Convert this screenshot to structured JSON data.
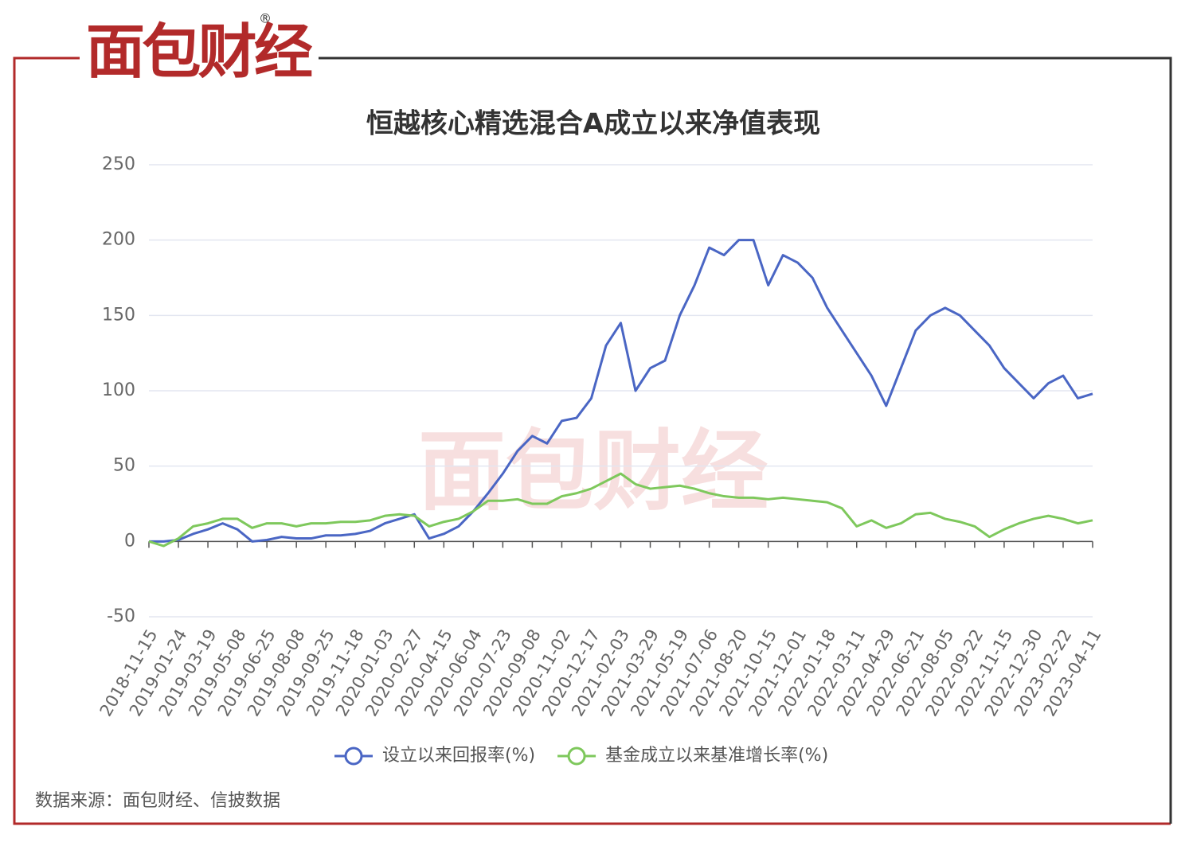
{
  "logo": "面包财经",
  "source": "数据来源：面包财经、信披数据",
  "chart_data": {
    "type": "line",
    "title": "恒越核心精选混合A成立以来净值表现",
    "categories": [
      "2018-11-15",
      null,
      "2019-01-24",
      null,
      "2019-03-19",
      null,
      "2019-05-08",
      null,
      "2019-06-25",
      null,
      "2019-08-08",
      null,
      "2019-09-25",
      null,
      "2019-11-18",
      null,
      "2020-01-03",
      null,
      "2020-02-27",
      null,
      "2020-04-15",
      null,
      "2020-06-04",
      null,
      "2020-07-23",
      null,
      "2020-09-08",
      null,
      "2020-11-02",
      null,
      "2020-12-17",
      null,
      "2021-02-03",
      null,
      "2021-03-29",
      null,
      "2021-05-19",
      null,
      "2021-07-06",
      null,
      "2021-08-20",
      null,
      "2021-10-15",
      null,
      "2021-12-01",
      null,
      "2022-01-18",
      null,
      "2022-03-11",
      null,
      "2022-04-29",
      null,
      "2022-06-21",
      null,
      "2022-08-05",
      null,
      "2022-09-22",
      null,
      "2022-11-15",
      null,
      "2022-12-30",
      null,
      "2023-02-22",
      null,
      "2023-04-11"
    ],
    "series": [
      {
        "name": "设立以来回报率(%)",
        "color": "#4a66c4",
        "values": [
          0,
          0,
          1,
          5,
          8,
          12,
          8,
          0,
          1,
          3,
          2,
          2,
          4,
          4,
          5,
          7,
          12,
          15,
          18,
          2,
          5,
          10,
          20,
          32,
          45,
          60,
          70,
          65,
          80,
          82,
          95,
          130,
          145,
          100,
          115,
          120,
          150,
          170,
          195,
          190,
          200,
          200,
          170,
          190,
          185,
          175,
          155,
          140,
          125,
          110,
          90,
          115,
          140,
          150,
          155,
          150,
          140,
          130,
          115,
          105,
          95,
          105,
          110,
          95,
          98
        ]
      },
      {
        "name": "基金成立以来基准增长率(%)",
        "color": "#7ec85c",
        "values": [
          0,
          -3,
          2,
          10,
          12,
          15,
          15,
          9,
          12,
          12,
          10,
          12,
          12,
          13,
          13,
          14,
          17,
          18,
          17,
          10,
          13,
          15,
          20,
          27,
          27,
          28,
          25,
          25,
          30,
          32,
          35,
          40,
          45,
          38,
          35,
          36,
          37,
          35,
          32,
          30,
          29,
          29,
          28,
          29,
          28,
          27,
          26,
          22,
          10,
          14,
          9,
          12,
          18,
          19,
          15,
          13,
          10,
          3,
          8,
          12,
          15,
          17,
          15,
          12,
          14
        ]
      }
    ],
    "ylim": [
      -50,
      250
    ],
    "yticks": [
      -50,
      0,
      50,
      100,
      150,
      200,
      250
    ],
    "grid": true
  }
}
